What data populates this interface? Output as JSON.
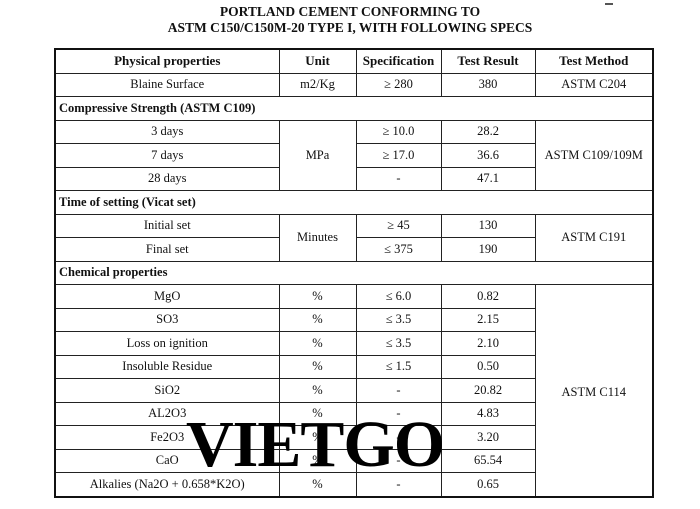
{
  "title_line1": "PORTLAND  CEMENT CONFORMING TO",
  "title_line2": "ASTM C150/C150M-20 TYPE I, WITH FOLLOWING SPECS",
  "headers": [
    "Physical properties",
    "Unit",
    "Specification",
    "Test Result",
    "Test Method"
  ],
  "blaine": {
    "name": "Blaine Surface",
    "unit": "m2/Kg",
    "spec": "≥ 280",
    "result": "380",
    "method": "ASTM C204"
  },
  "compressive": {
    "section": "Compressive Strength (ASTM C109)",
    "unit": "MPa",
    "method": "ASTM C109/109M",
    "rows": [
      {
        "name": "3 days",
        "spec": "≥ 10.0",
        "result": "28.2"
      },
      {
        "name": "7 days",
        "spec": "≥ 17.0",
        "result": "36.6"
      },
      {
        "name": "28 days",
        "spec": "-",
        "result": "47.1"
      }
    ]
  },
  "setting": {
    "section": "Time of setting (Vicat set)",
    "unit": "Minutes",
    "method": "ASTM C191",
    "rows": [
      {
        "name": "Initial set",
        "spec": "≥ 45",
        "result": "130"
      },
      {
        "name": "Final set",
        "spec": "≤ 375",
        "result": "190"
      }
    ]
  },
  "chemical": {
    "section": "Chemical properties",
    "method": "ASTM C114",
    "rows": [
      {
        "name": "MgO",
        "unit": "%",
        "spec": "≤ 6.0",
        "result": "0.82"
      },
      {
        "name": "SO3",
        "unit": "%",
        "spec": "≤ 3.5",
        "result": "2.15"
      },
      {
        "name": "Loss on ignition",
        "unit": "%",
        "spec": "≤ 3.5",
        "result": "2.10"
      },
      {
        "name": "Insoluble Residue",
        "unit": "%",
        "spec": "≤ 1.5",
        "result": "0.50"
      },
      {
        "name": "SiO2",
        "unit": "%",
        "spec": "-",
        "result": "20.82"
      },
      {
        "name": "AL2O3",
        "unit": "%",
        "spec": "-",
        "result": "4.83"
      },
      {
        "name": "Fe2O3",
        "unit": "%",
        "spec": "-",
        "result": "3.20"
      },
      {
        "name": "CaO",
        "unit": "%",
        "spec": "-",
        "result": "65.54"
      },
      {
        "name": "Alkalies (Na2O + 0.658*K2O)",
        "unit": "%",
        "spec": "-",
        "result": "0.65"
      }
    ]
  },
  "watermark": "VIETGO"
}
